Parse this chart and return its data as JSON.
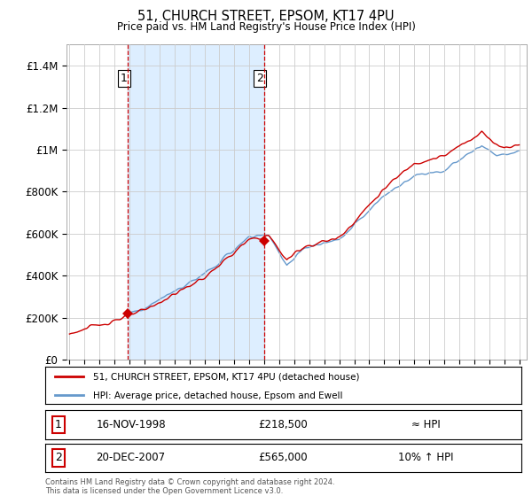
{
  "title": "51, CHURCH STREET, EPSOM, KT17 4PU",
  "subtitle": "Price paid vs. HM Land Registry's House Price Index (HPI)",
  "ylim": [
    0,
    1500000
  ],
  "yticks": [
    0,
    200000,
    400000,
    600000,
    800000,
    1000000,
    1200000,
    1400000
  ],
  "ytick_labels": [
    "£0",
    "£200K",
    "£400K",
    "£600K",
    "£800K",
    "£1M",
    "£1.2M",
    "£1.4M"
  ],
  "sale1_date": "16-NOV-1998",
  "sale1_price": 218500,
  "sale1_hpi_note": "≈ HPI",
  "sale2_date": "20-DEC-2007",
  "sale2_price": 565000,
  "sale2_hpi_note": "10% ↑ HPI",
  "line_color_price": "#cc0000",
  "line_color_hpi": "#6699cc",
  "shade_color": "#ddeeff",
  "legend_label_price": "51, CHURCH STREET, EPSOM, KT17 4PU (detached house)",
  "legend_label_hpi": "HPI: Average price, detached house, Epsom and Ewell",
  "footnote": "Contains HM Land Registry data © Crown copyright and database right 2024.\nThis data is licensed under the Open Government Licence v3.0.",
  "background_color": "#ffffff",
  "grid_color": "#cccccc",
  "sale1_x": 1998.88,
  "sale2_x": 2007.97,
  "xlim_min": 1994.8,
  "xlim_max": 2025.5
}
